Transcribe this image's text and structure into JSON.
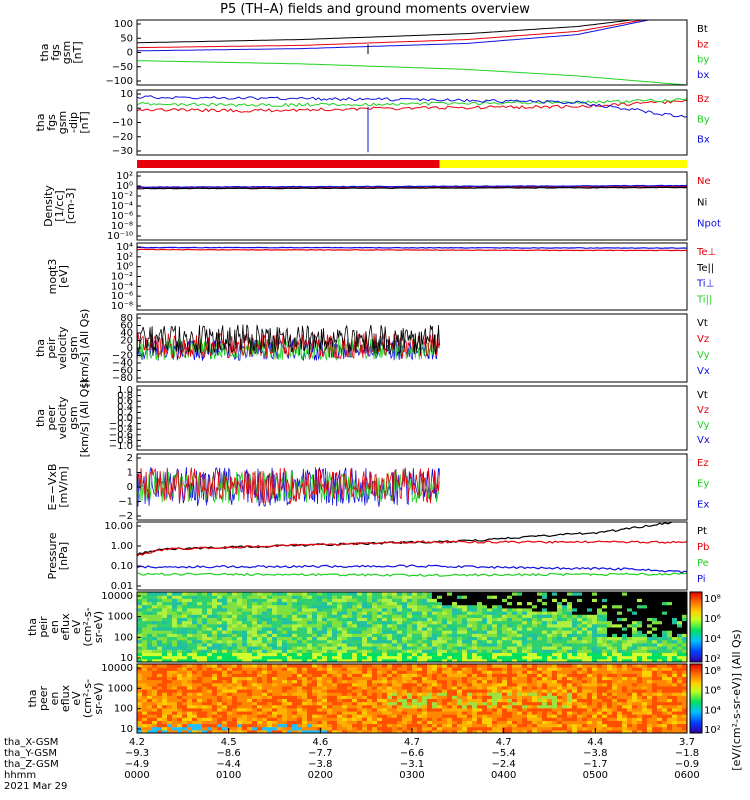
{
  "title": "P5 (TH–A) fields and ground moments overview",
  "colors": {
    "black": "#000000",
    "red": "#e8000b",
    "green": "#1fd11f",
    "blue": "#1010e0",
    "yellow": "#ffff00"
  },
  "chart_data": [
    {
      "id": "fgs_gsm",
      "type": "line",
      "ylabel": [
        "tha",
        "fgs",
        "gsm",
        "[nT]"
      ],
      "yticks": [
        "100",
        "50",
        "0",
        "−50",
        "−100"
      ],
      "ylim": [
        -100,
        100
      ],
      "scale": "linear",
      "legend": [
        {
          "name": "Bt",
          "color": "black"
        },
        {
          "name": "bz",
          "color": "red"
        },
        {
          "name": "by",
          "color": "green"
        },
        {
          "name": "bx",
          "color": "blue"
        }
      ],
      "series": [
        {
          "name": "Bt",
          "color": "black",
          "x": [
            0,
            0.3,
            0.6,
            0.8,
            0.9
          ],
          "y": [
            30,
            40,
            58,
            80,
            100
          ]
        },
        {
          "name": "bz",
          "color": "red",
          "x": [
            0,
            0.3,
            0.6,
            0.8,
            0.92
          ],
          "y": [
            15,
            22,
            40,
            65,
            100
          ]
        },
        {
          "name": "by",
          "color": "green",
          "x": [
            0,
            0.3,
            0.6,
            0.8,
            1
          ],
          "y": [
            -25,
            -35,
            -52,
            -72,
            -100
          ]
        },
        {
          "name": "bx",
          "color": "blue",
          "x": [
            0,
            0.3,
            0.6,
            0.8,
            0.93
          ],
          "y": [
            5,
            12,
            28,
            55,
            100
          ]
        }
      ]
    },
    {
      "id": "fgs_gsm_dip",
      "type": "line",
      "ylabel": [
        "tha",
        "fgs",
        "gsm",
        "-dip",
        "[nT]"
      ],
      "yticks": [
        "10",
        "0",
        "−10",
        "−20",
        "−30"
      ],
      "ylim": [
        -35,
        12
      ],
      "scale": "linear",
      "legend": [
        {
          "name": "Bz",
          "color": "red"
        },
        {
          "name": "By",
          "color": "green"
        },
        {
          "name": "Bx",
          "color": "blue"
        }
      ],
      "series": [
        {
          "name": "Bz",
          "color": "red",
          "x": [
            0,
            0.2,
            0.5,
            0.8,
            1
          ],
          "y": [
            -2,
            -3,
            -1,
            0,
            4
          ]
        },
        {
          "name": "By",
          "color": "green",
          "x": [
            0,
            0.2,
            0.5,
            0.8,
            1
          ],
          "y": [
            2,
            1,
            2,
            3,
            5
          ]
        },
        {
          "name": "Bx",
          "color": "blue",
          "x": [
            0,
            0.2,
            0.5,
            0.8,
            0.9,
            1
          ],
          "y": [
            7,
            6,
            5,
            3,
            -2,
            -8
          ]
        }
      ]
    },
    {
      "id": "mode_bar",
      "type": "bar",
      "segments": [
        {
          "from": 0,
          "to": 0.55,
          "color": "red"
        },
        {
          "from": 0.55,
          "to": 1,
          "color": "yellow"
        }
      ]
    },
    {
      "id": "density",
      "type": "line",
      "ylabel": [
        "Density",
        "[1/cc]",
        "[cm-3]"
      ],
      "yticks": [
        "10²",
        "10⁰",
        "10⁻²",
        "10⁻⁴",
        "10⁻⁶",
        "10⁻⁸",
        "10⁻¹⁰"
      ],
      "scale": "log",
      "legend": [
        {
          "name": "Ne",
          "color": "red"
        },
        {
          "name": "Ni",
          "color": "black"
        },
        {
          "name": "Npot",
          "color": "blue"
        }
      ],
      "series": [
        {
          "name": "Ne",
          "color": "red",
          "x": [
            0,
            1
          ],
          "y": [
            0.5,
            0.8
          ]
        },
        {
          "name": "Ni",
          "color": "black",
          "x": [
            0,
            1
          ],
          "y": [
            0.3,
            0.5
          ]
        },
        {
          "name": "Npot",
          "color": "blue",
          "x": [
            0,
            1
          ],
          "y": [
            0.6,
            1.2
          ]
        }
      ]
    },
    {
      "id": "temperature",
      "type": "line",
      "ylabel": [
        "moqt3",
        "[eV]"
      ],
      "yticks": [
        "10⁴",
        "10²",
        "10⁰",
        "10⁻²",
        "10⁻⁴",
        "10⁻⁶",
        "10⁻⁸"
      ],
      "scale": "log",
      "legend": [
        {
          "name": "Te⊥",
          "color": "red"
        },
        {
          "name": "Te||",
          "color": "black"
        },
        {
          "name": "Ti⊥",
          "color": "blue"
        },
        {
          "name": "Ti||",
          "color": "green"
        }
      ],
      "series": [
        {
          "name": "Te⊥",
          "color": "red",
          "x": [
            0,
            1
          ],
          "y": [
            3000,
            2000
          ]
        },
        {
          "name": "Ti⊥",
          "color": "blue",
          "x": [
            0,
            1
          ],
          "y": [
            8000,
            6000
          ]
        }
      ]
    },
    {
      "id": "peir_velocity",
      "type": "line",
      "ylabel": [
        "tha",
        "peir",
        "velocity",
        "gsm",
        "[km/s] (All Qs)"
      ],
      "yticks": [
        "80",
        "60",
        "40",
        "20",
        "0",
        "−20",
        "−40",
        "−60",
        "−80"
      ],
      "ylim": [
        -80,
        80
      ],
      "scale": "linear",
      "legend": [
        {
          "name": "Vt",
          "color": "black"
        },
        {
          "name": "Vz",
          "color": "red"
        },
        {
          "name": "Vy",
          "color": "green"
        },
        {
          "name": "Vx",
          "color": "blue"
        }
      ],
      "x_end": 0.55
    },
    {
      "id": "peer_velocity",
      "type": "line",
      "ylabel": [
        "tha",
        "peer",
        "velocity",
        "gsm",
        "[km/s] (All Qs)"
      ],
      "yticks": [
        "1.0",
        "0.8",
        "0.6",
        "0.4",
        "0.2",
        "0.0",
        "−0.2",
        "−0.4",
        "−0.6",
        "−0.8",
        "−1.0"
      ],
      "ylim": [
        -1,
        1
      ],
      "scale": "linear",
      "legend": [
        {
          "name": "Vt",
          "color": "black"
        },
        {
          "name": "Vz",
          "color": "red"
        },
        {
          "name": "Vy",
          "color": "green"
        },
        {
          "name": "Vx",
          "color": "blue"
        }
      ]
    },
    {
      "id": "efield",
      "type": "line",
      "ylabel": [
        "E=−VxB",
        "[mV/m]"
      ],
      "yticks": [
        "2",
        "1",
        "0",
        "−1",
        "−2"
      ],
      "ylim": [
        -2,
        2
      ],
      "scale": "linear",
      "legend": [
        {
          "name": "Ez",
          "color": "red"
        },
        {
          "name": "Ey",
          "color": "green"
        },
        {
          "name": "Ex",
          "color": "blue"
        }
      ],
      "x_end": 0.55
    },
    {
      "id": "pressure",
      "type": "line",
      "ylabel": [
        "Pressure",
        "[nPa]"
      ],
      "yticks": [
        "10.00",
        "1.00",
        "0.10",
        "0.01"
      ],
      "scale": "log",
      "legend": [
        {
          "name": "Pt",
          "color": "black"
        },
        {
          "name": "Pb",
          "color": "red"
        },
        {
          "name": "Pe",
          "color": "green"
        },
        {
          "name": "Pi",
          "color": "blue"
        }
      ],
      "series": [
        {
          "name": "Pt",
          "color": "black",
          "x": [
            0,
            0.05,
            0.3,
            0.6,
            0.85,
            1
          ],
          "y": [
            0.4,
            0.7,
            1.1,
            1.8,
            5,
            20
          ]
        },
        {
          "name": "Pb",
          "color": "red",
          "x": [
            0,
            0.05,
            0.3,
            0.5
          ],
          "y": [
            0.35,
            0.7,
            1.1,
            1.6
          ]
        },
        {
          "name": "Pe",
          "color": "green",
          "x": [
            0,
            0.5,
            1
          ],
          "y": [
            0.04,
            0.035,
            0.04
          ]
        },
        {
          "name": "Pi",
          "color": "blue",
          "x": [
            0,
            0.5,
            0.9,
            1
          ],
          "y": [
            0.09,
            0.1,
            0.07,
            0.05
          ]
        }
      ]
    },
    {
      "id": "peir_spectrogram",
      "type": "heatmap",
      "ylabel": [
        "tha",
        "peir",
        "en",
        "eflux",
        "eV",
        "(cm²-s-",
        "sr-eV)"
      ],
      "yticks": [
        "10000",
        "1000",
        "100",
        "10"
      ],
      "scale": "log",
      "colorbar": {
        "ticks": [
          "10⁸",
          "10⁶",
          "10⁴",
          "10²"
        ]
      }
    },
    {
      "id": "peer_spectrogram",
      "type": "heatmap",
      "ylabel": [
        "tha",
        "peer",
        "en",
        "eflux",
        "eV",
        "(cm²-s-",
        "sr-eV)"
      ],
      "yticks": [
        "10000",
        "1000",
        "100",
        "10"
      ],
      "scale": "log",
      "colorbar": {
        "ticks": [
          "10⁸",
          "10⁶",
          "10⁴",
          "10²"
        ]
      }
    }
  ],
  "colorbar_label": "[eV/(cm²-s-sr-eV)] (All Qs)",
  "xaxis": {
    "rows": [
      {
        "label": "tha_X-GSM",
        "values": [
          "4.2",
          "4.5",
          "4.6",
          "4.7",
          "4.7",
          "4.4",
          "3.7"
        ]
      },
      {
        "label": "tha_Y-GSM",
        "values": [
          "−9.3",
          "−8.6",
          "−7.7",
          "−6.6",
          "−5.4",
          "−3.8",
          "−1.8"
        ]
      },
      {
        "label": "tha_Z-GSM",
        "values": [
          "−4.9",
          "−4.4",
          "−3.8",
          "−3.1",
          "−2.4",
          "−1.7",
          "−0.9"
        ]
      },
      {
        "label": "hhmm",
        "values": [
          "0000",
          "0100",
          "0200",
          "0300",
          "0400",
          "0500",
          "0600"
        ]
      }
    ],
    "date": "2021 Mar 29"
  }
}
